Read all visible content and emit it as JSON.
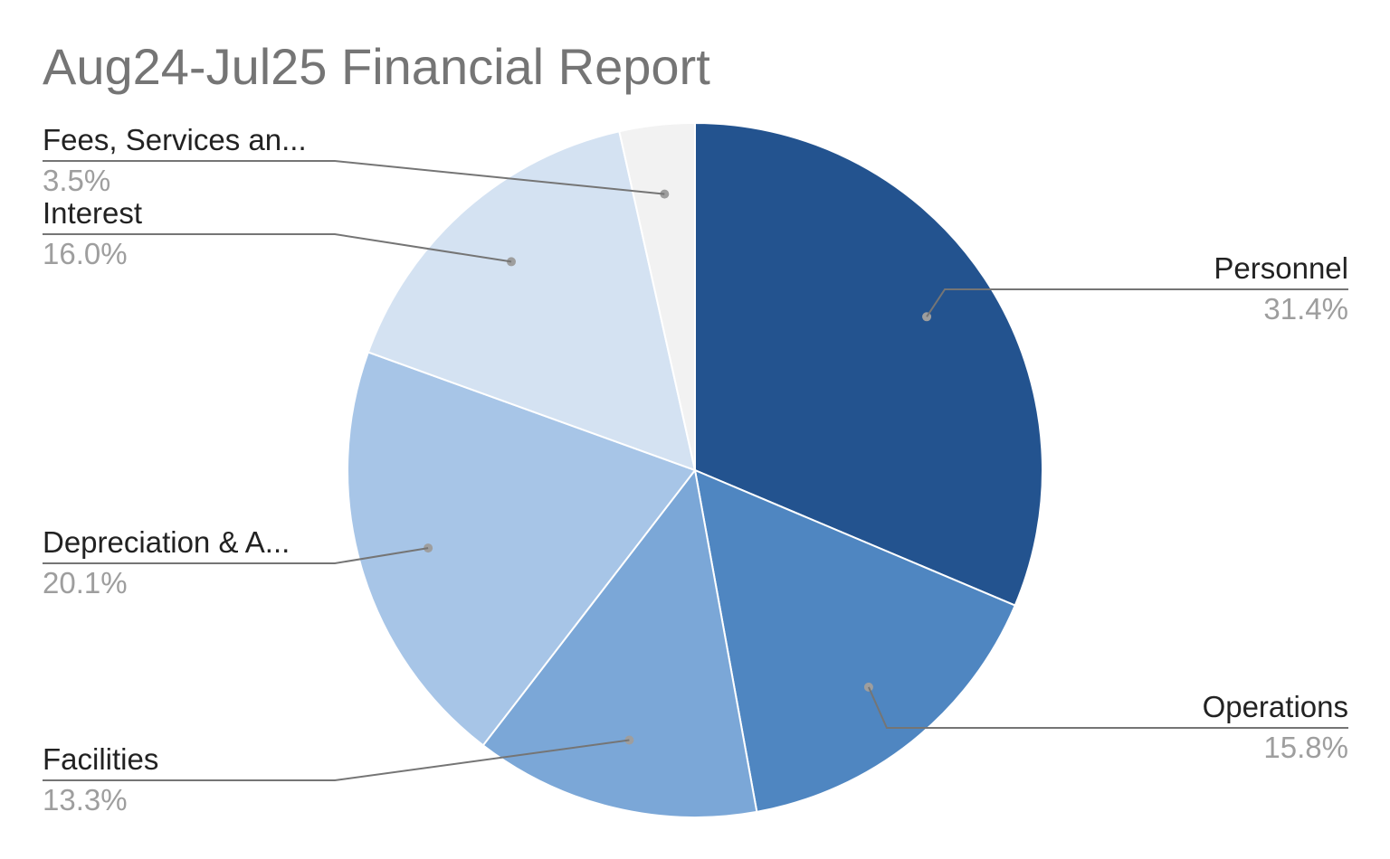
{
  "chart_data": {
    "type": "pie",
    "title": "Aug24-Jul25 Financial Report",
    "slices": [
      {
        "label": "Personnel",
        "value": 31.4,
        "value_label": "31.4%",
        "color": "#23538f"
      },
      {
        "label": "Operations",
        "value": 15.8,
        "value_label": "15.8%",
        "color": "#4f86c1"
      },
      {
        "label": "Facilities",
        "value": 13.3,
        "value_label": "13.3%",
        "color": "#7ba7d7"
      },
      {
        "label": "Depreciation & A...",
        "value": 20.1,
        "value_label": "20.1%",
        "color": "#a7c5e7"
      },
      {
        "label": "Interest",
        "value": 16.0,
        "value_label": "16.0%",
        "color": "#d4e2f2"
      },
      {
        "label": "Fees, Services an...",
        "value": 3.5,
        "value_label": "3.5%",
        "color": "#f2f2f2"
      }
    ],
    "start_angle": "12 o'clock",
    "direction": "clockwise",
    "legend": "labeled slices"
  }
}
